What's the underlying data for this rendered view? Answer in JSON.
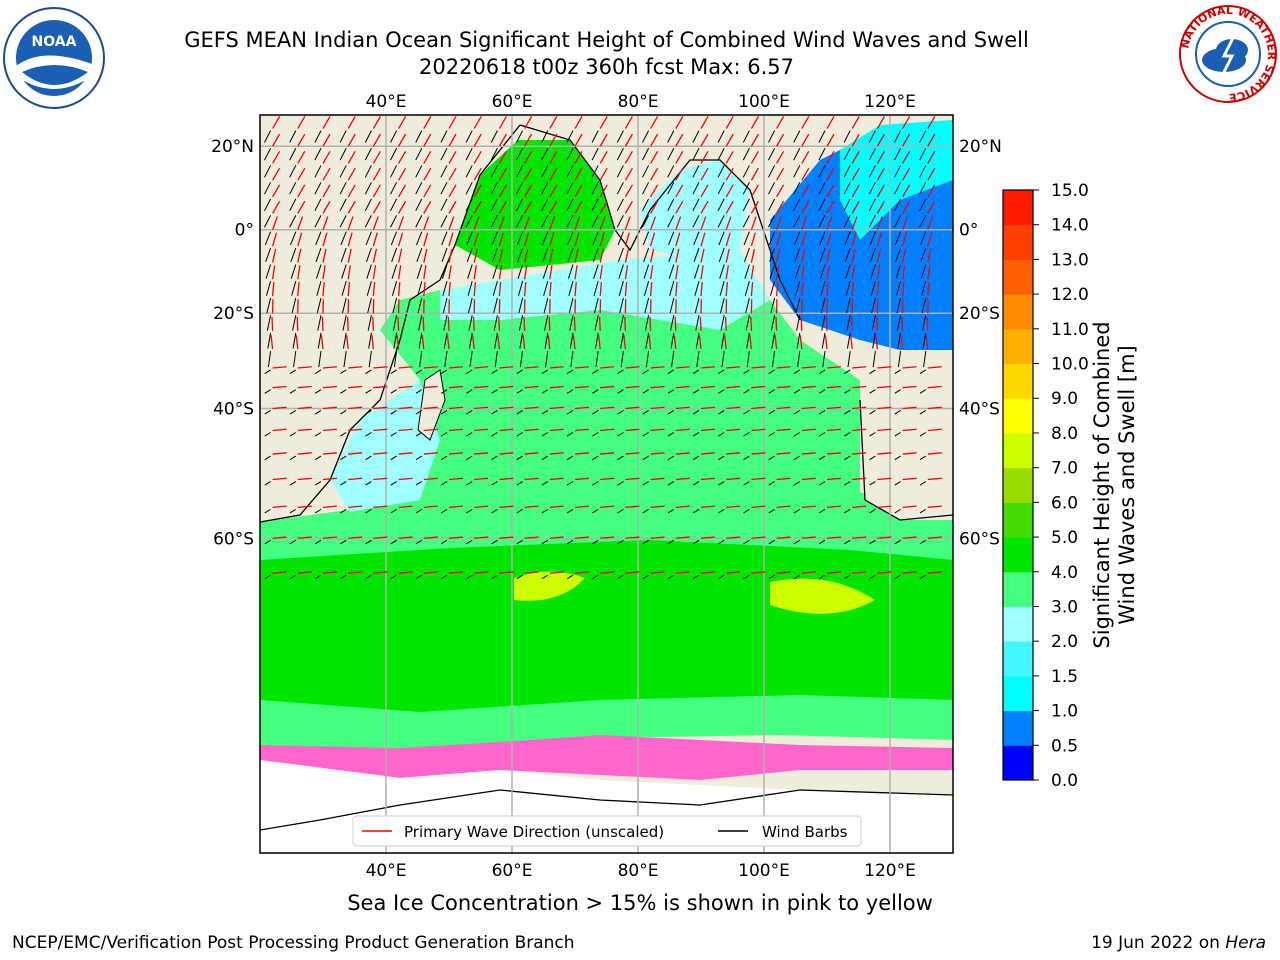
{
  "title": {
    "line1": "GEFS MEAN Indian Ocean Significant Height of Combined Wind Waves and Swell",
    "line2": "20220618 t00z 360h fcst   Max: 6.57"
  },
  "subtitle": "Sea Ice Concentration > 15% is shown in pink to yellow",
  "footer": {
    "left": "NCEP/EMC/Verification Post Processing Product Generation Branch",
    "date": "19 Jun 2022 on ",
    "host": "Hera"
  },
  "logos": {
    "left": "NOAA",
    "right": "NATIONAL WEATHER SERVICE"
  },
  "map": {
    "lon_labels": [
      "40°E",
      "60°E",
      "80°E",
      "100°E",
      "120°E"
    ],
    "lon_values": [
      40,
      60,
      80,
      100,
      120
    ],
    "lat_labels": [
      "20°N",
      "0°",
      "20°S",
      "40°S",
      "60°S"
    ],
    "lat_values": [
      20,
      0,
      -20,
      -40,
      -60
    ],
    "lon_range": [
      20,
      130
    ],
    "lat_range": [
      -82,
      27
    ],
    "land_color": "#efecdc",
    "sea_ice_color": "#ff66cc"
  },
  "legend": {
    "wave_label": "Primary Wave Direction (unscaled)",
    "wind_label": "Wind Barbs",
    "wave_color": "#ff0000",
    "wind_color": "#000000"
  },
  "colorbar": {
    "title_line1": "Significant Height of Combined",
    "title_line2": "Wind Waves and Swell [m]",
    "ticks": [
      "0.0",
      "0.5",
      "1.0",
      "1.5",
      "2.0",
      "3.0",
      "4.0",
      "5.0",
      "6.0",
      "7.0",
      "8.0",
      "9.0",
      "10.0",
      "11.0",
      "12.0",
      "13.0",
      "14.0",
      "15.0"
    ],
    "colors": [
      "#0000ff",
      "#0080ff",
      "#00ffff",
      "#44f6ff",
      "#a0ffff",
      "#44ff80",
      "#00e600",
      "#44dd00",
      "#99dd00",
      "#ccff00",
      "#ffff00",
      "#ffd700",
      "#ffb000",
      "#ff8c00",
      "#ff6000",
      "#ff4000",
      "#ff1a00"
    ]
  }
}
